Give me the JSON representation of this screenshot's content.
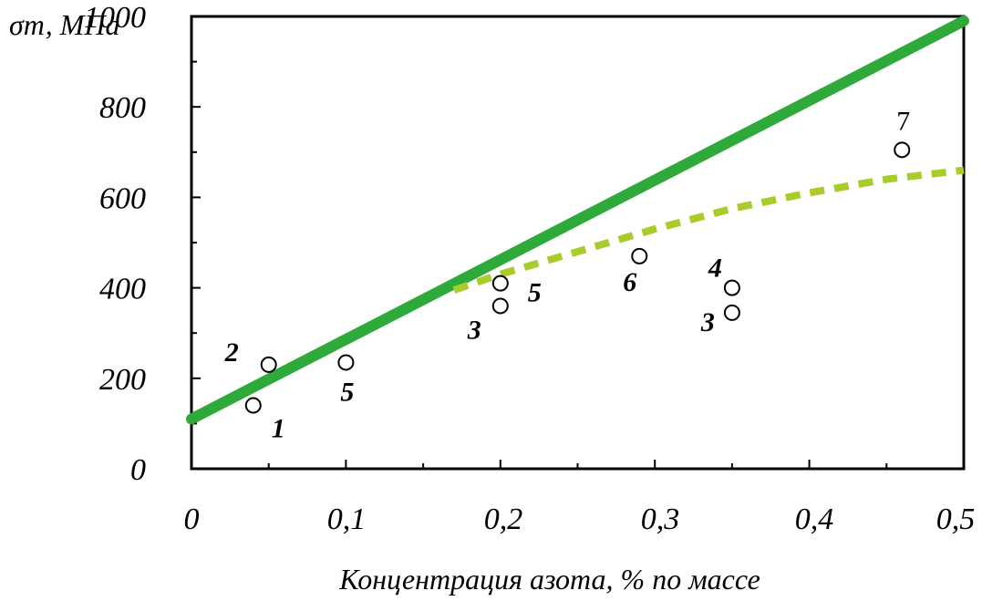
{
  "chart_data": {
    "type": "scatter",
    "title": "",
    "ylabel": "σт, МПа",
    "xlabel": "Концентрация азота, % по массе",
    "xlim": [
      0,
      0.5
    ],
    "ylim": [
      0,
      1000
    ],
    "x_ticks": [
      "0",
      "0,1",
      "0,2",
      "0,3",
      "0,4",
      "0,5"
    ],
    "y_ticks": [
      "0",
      "200",
      "400",
      "600",
      "800",
      "1000"
    ],
    "grid": false,
    "legend": "none",
    "colors": {
      "solid_line": "#2eaa3a",
      "dashed_line": "#a8cc2a",
      "axis": "#000000"
    },
    "lines": [
      {
        "style": "solid",
        "x": [
          0.0,
          0.5
        ],
        "y": [
          110,
          990
        ]
      },
      {
        "style": "dashed",
        "x": [
          0.17,
          0.2,
          0.25,
          0.3,
          0.35,
          0.4,
          0.45,
          0.5
        ],
        "y": [
          395,
          430,
          480,
          530,
          575,
          610,
          640,
          660
        ]
      }
    ],
    "points": [
      {
        "label": "1",
        "x": 0.04,
        "y": 140
      },
      {
        "label": "2",
        "x": 0.05,
        "y": 230
      },
      {
        "label": "5",
        "x": 0.1,
        "y": 235
      },
      {
        "label": "3",
        "x": 0.2,
        "y": 360
      },
      {
        "label": "5",
        "x": 0.2,
        "y": 410
      },
      {
        "label": "6",
        "x": 0.29,
        "y": 470
      },
      {
        "label": "4",
        "x": 0.35,
        "y": 400
      },
      {
        "label": "3",
        "x": 0.35,
        "y": 345
      },
      {
        "label": "7",
        "x": 0.46,
        "y": 705
      }
    ]
  }
}
